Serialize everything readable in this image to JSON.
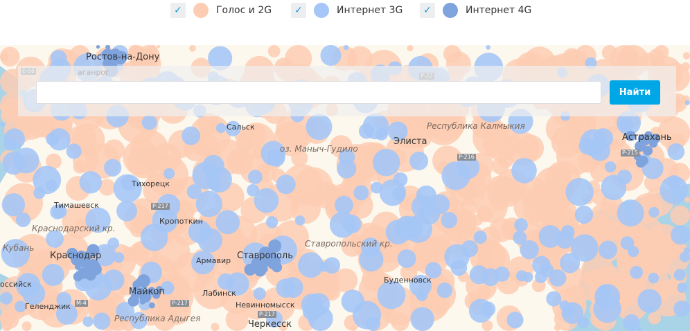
{
  "legend": [
    {
      "label": "Голос и 2G",
      "color": "#fdcdb3",
      "checked": true
    },
    {
      "label": "Интернет 3G",
      "color": "#a5c6f6",
      "checked": true
    },
    {
      "label": "Интернет 4G",
      "color": "#7fa3dc",
      "checked": true
    }
  ],
  "search": {
    "value": "",
    "button_label": "Найти"
  },
  "map": {
    "cities": [
      "Ростов-на-Дону",
      "аганрог",
      "Сальск",
      "Элиста",
      "Астрахань",
      "Тихорецк",
      "Тимашевск",
      "Кропоткин",
      "Краснодар",
      "Армавир",
      "Ставрополь",
      "Буденновск",
      "Майкоп",
      "Лабинск",
      "Невинномысск",
      "Геленджик",
      "Черкесск",
      "оссийск",
      "Кубань"
    ],
    "regions": [
      "Республика Калмыкия",
      "Краснодарский кр.",
      "Ставропольский кр.",
      "Республика Адыгея",
      "оз. Маныч-Гудило"
    ],
    "roads": [
      "E-58",
      "P-22",
      "P-216",
      "P-215",
      "P-217",
      "P-217",
      "M-4",
      "P-217"
    ],
    "colors": {
      "land": "#fcf8ee",
      "sea": "#a9d3e6",
      "voice": "#fdcdb3",
      "g3": "#a5c6f6",
      "g4": "#7fa3dc"
    }
  }
}
